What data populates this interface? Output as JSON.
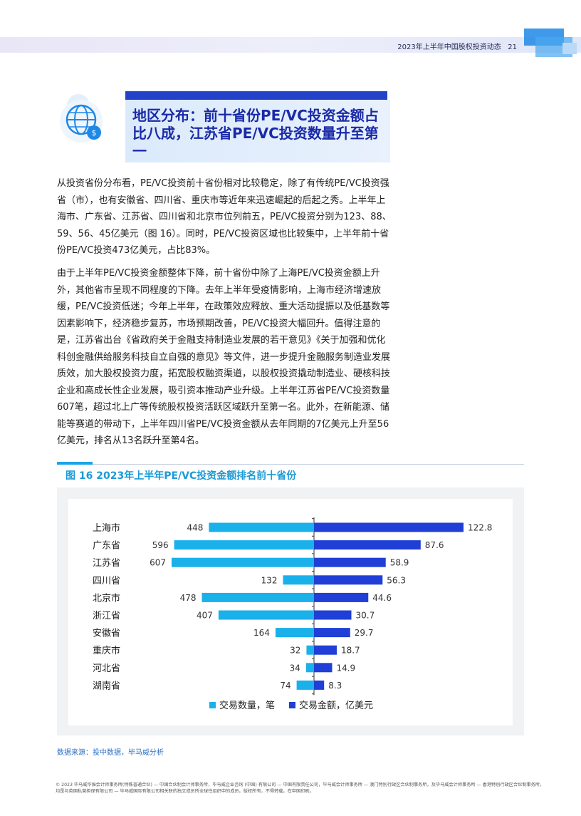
{
  "header": {
    "report_title": "2023年上半年中国股权投资动态",
    "page_number": "21"
  },
  "section": {
    "title": "地区分布：前十省份PE/VC投资金额占比八成，江苏省PE/VC投资数量升至第一"
  },
  "body": {
    "paragraph1": "从投资省份分布看，PE/VC投资前十省份相对比较稳定，除了有传统PE/VC投资强省（市），也有安徽省、四川省、重庆市等近年来迅速崛起的后起之秀。上半年上海市、广东省、江苏省、四川省和北京市位列前五，PE/VC投资分别为123、88、59、56、45亿美元（图 16）。同时，PE/VC投资区域也比较集中，上半年前十省份PE/VC投资473亿美元，占比83%。",
    "paragraph2": "由于上半年PE/VC投资金额整体下降，前十省份中除了上海PE/VC投资金额上升外，其他省市呈现不同程度的下降。去年上半年受疫情影响，上海市经济增速放缓，PE/VC投资低迷；今年上半年，在政策效应释放、重大活动提振以及低基数等因素影响下，经济稳步复苏，市场预期改善，PE/VC投资大幅回升。值得注意的是，江苏省出台《省政府关于金融支持制造业发展的若干意见》《关于加强和优化科创金融供给服务科技自立自强的意见》等文件，进一步提升金融服务制造业发展质效，加大股权投资力度，拓宽股权融资渠道，以股权投资撬动制造业、硬核科技企业和高成长性企业发展，吸引资本推动产业升级。上半年江苏省PE/VC投资数量607笔，超过北上广等传统股权投资活跃区域跃升至第一名。此外，在新能源、储能等赛道的带动下，上半年四川省PE/VC投资金额从去年同期的7亿美元上升至56亿美元，排名从13名跃升至第4名。"
  },
  "figure": {
    "title": "图 16  2023年上半年PE/VC投资金额排名前十省份",
    "source": "数据来源：投中数据，毕马威分析"
  },
  "chart_data": {
    "type": "bar",
    "orientation": "horizontal-diverging",
    "categories": [
      "上海市",
      "广东省",
      "江苏省",
      "四川省",
      "北京市",
      "浙江省",
      "安徽省",
      "重庆市",
      "河北省",
      "湖南省"
    ],
    "series": [
      {
        "name": "交易数量，笔",
        "values": [
          448,
          596,
          607,
          132,
          478,
          407,
          164,
          32,
          34,
          74
        ],
        "color": "#1ab0ea",
        "side": "left"
      },
      {
        "name": "交易金额，亿美元",
        "values": [
          122.8,
          87.6,
          58.9,
          56.3,
          44.6,
          30.7,
          29.7,
          18.7,
          14.9,
          8.3
        ],
        "color": "#1f3fd6",
        "side": "right"
      }
    ],
    "value_labels_left": [
      "448",
      "596",
      "607",
      "132",
      "478",
      "407",
      "164",
      "32",
      "34",
      "74"
    ],
    "value_labels_right": [
      "122.8",
      "87.6",
      "58.9",
      "56.3",
      "44.6",
      "30.7",
      "29.7",
      "18.7",
      "14.9",
      "8.3"
    ],
    "legend_position": "bottom-center",
    "grid": false
  },
  "footer": {
    "copyright": "© 2023 毕马威华振会计师事务所(特殊普通合伙) — 中国合伙制会计师事务所，毕马威企业咨询 (中国) 有限公司 — 中国有限责任公司，毕马威会计师事务所 — 澳门特别行政区合伙制事务所，及毕马威会计师事务所 — 香港特别行政区合伙制事务所，均是与英国私营担保有限公司 — 毕马威国际有限公司相关联的独立成员所全球性组织中的成员。版权所有，不得转载。在中国印刷。"
  }
}
